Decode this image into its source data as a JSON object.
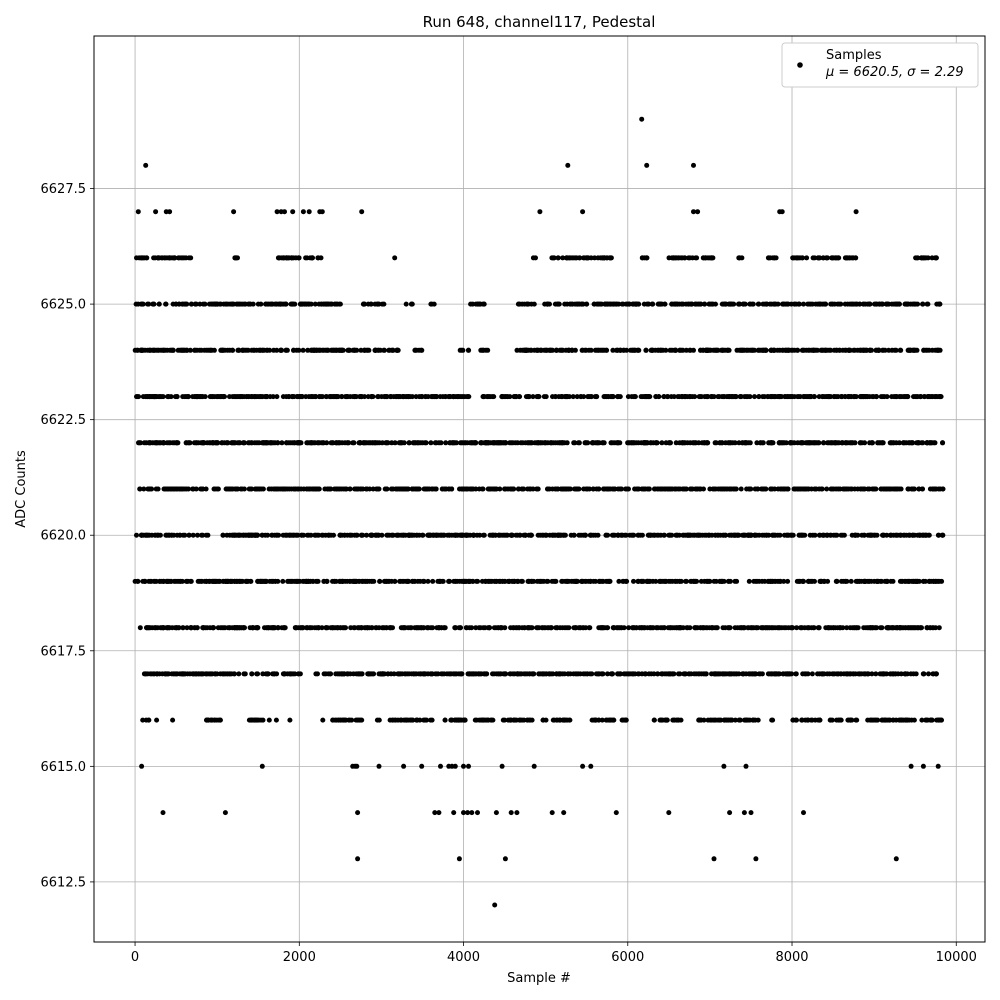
{
  "chart_data": {
    "type": "scatter",
    "title": "Run 648, channel117, Pedestal",
    "xlabel": "Sample #",
    "ylabel": "ADC Counts",
    "xlim": [
      -500,
      10350
    ],
    "ylim": [
      6611.2,
      6630.8
    ],
    "xticks": [
      0,
      2000,
      4000,
      6000,
      8000,
      10000
    ],
    "yticks": [
      6612.5,
      6615.0,
      6617.5,
      6620.0,
      6622.5,
      6625.0,
      6627.5
    ],
    "xtick_labels": [
      "0",
      "2000",
      "4000",
      "6000",
      "8000",
      "10000"
    ],
    "ytick_labels": [
      "6612.5",
      "6615.0",
      "6617.5",
      "6620.0",
      "6622.5",
      "6625.0",
      "6627.5"
    ],
    "grid": true,
    "legend_position": "top-right",
    "n_samples": 9850,
    "series": [
      {
        "name": "Samples",
        "stats_label": "μ = 6620.5, σ = 2.29",
        "mean": 6620.5,
        "sigma": 2.29,
        "color": "#000000",
        "level_coverage": [
          {
            "y": 6626,
            "ranges": [
              [
                0,
                680
              ],
              [
                1180,
                1270
              ],
              [
                1740,
                2300
              ],
              [
                3150,
                3170
              ],
              [
                4850,
                4880
              ],
              [
                5050,
                5820
              ],
              [
                6150,
                6250
              ],
              [
                6500,
                7050
              ],
              [
                7350,
                7420
              ],
              [
                7700,
                7820
              ],
              [
                8000,
                8800
              ],
              [
                9500,
                9780
              ]
            ]
          },
          {
            "y": 6625,
            "ranges": [
              [
                0,
                2520
              ],
              [
                2780,
                3060
              ],
              [
                3300,
                3380
              ],
              [
                3600,
                3650
              ],
              [
                4050,
                4270
              ],
              [
                4650,
                7100
              ],
              [
                7150,
                9820
              ]
            ]
          },
          {
            "y": 6624,
            "ranges": [
              [
                0,
                2700
              ],
              [
                2750,
                3230
              ],
              [
                3400,
                3500
              ],
              [
                3950,
                4000
              ],
              [
                4050,
                4080
              ],
              [
                4200,
                4300
              ],
              [
                4650,
                9820
              ]
            ]
          },
          {
            "y": 6623,
            "ranges": [
              [
                0,
                9820
              ]
            ]
          },
          {
            "y": 6622,
            "ranges": [
              [
                0,
                9840
              ]
            ]
          },
          {
            "y": 6621,
            "ranges": [
              [
                0,
                9840
              ]
            ]
          },
          {
            "y": 6620,
            "ranges": [
              [
                0,
                9840
              ]
            ]
          },
          {
            "y": 6619,
            "ranges": [
              [
                0,
                9840
              ]
            ]
          },
          {
            "y": 6618,
            "ranges": [
              [
                60,
                9840
              ]
            ]
          },
          {
            "y": 6617,
            "ranges": [
              [
                100,
                2030
              ],
              [
                2200,
                2230
              ],
              [
                2300,
                9840
              ]
            ]
          },
          {
            "y": 6616,
            "ranges": [
              [
                90,
                170
              ],
              [
                260,
                280
              ],
              [
                440,
                460
              ],
              [
                830,
                1120
              ],
              [
                1380,
                1640
              ],
              [
                1720,
                1740
              ],
              [
                1880,
                1900
              ],
              [
                2270,
                2290
              ],
              [
                2400,
                2800
              ],
              [
                2950,
                2980
              ],
              [
                3100,
                3620
              ],
              [
                3750,
                4450
              ],
              [
                4450,
                4850
              ],
              [
                4950,
                5300
              ],
              [
                5550,
                6000
              ],
              [
                6300,
                6700
              ],
              [
                6850,
                7600
              ],
              [
                7750,
                7780
              ],
              [
                8000,
                8350
              ],
              [
                8450,
                8600
              ],
              [
                8650,
                8800
              ],
              [
                8900,
                9840
              ]
            ]
          }
        ],
        "sparse_points": [
          [
            40,
            6627
          ],
          [
            130,
            6628
          ],
          [
            250,
            6627
          ],
          [
            380,
            6627
          ],
          [
            420,
            6627
          ],
          [
            1200,
            6627
          ],
          [
            1730,
            6627
          ],
          [
            1780,
            6627
          ],
          [
            1820,
            6627
          ],
          [
            1920,
            6627
          ],
          [
            2050,
            6627
          ],
          [
            2120,
            6627
          ],
          [
            2250,
            6627
          ],
          [
            2280,
            6627
          ],
          [
            2760,
            6627
          ],
          [
            4930,
            6627
          ],
          [
            5450,
            6627
          ],
          [
            6800,
            6627
          ],
          [
            6850,
            6627
          ],
          [
            7850,
            6627
          ],
          [
            7880,
            6627
          ],
          [
            8780,
            6627
          ],
          [
            5270,
            6628
          ],
          [
            6230,
            6628
          ],
          [
            6800,
            6628
          ],
          [
            6170,
            6629
          ],
          [
            80,
            6615
          ],
          [
            1550,
            6615
          ],
          [
            2650,
            6615
          ],
          [
            2680,
            6615
          ],
          [
            2700,
            6615
          ],
          [
            2970,
            6615
          ],
          [
            3270,
            6615
          ],
          [
            3490,
            6615
          ],
          [
            3720,
            6615
          ],
          [
            3820,
            6615
          ],
          [
            3860,
            6615
          ],
          [
            3900,
            6615
          ],
          [
            4000,
            6615
          ],
          [
            4060,
            6615
          ],
          [
            4470,
            6615
          ],
          [
            4860,
            6615
          ],
          [
            5450,
            6615
          ],
          [
            5550,
            6615
          ],
          [
            7170,
            6615
          ],
          [
            7440,
            6615
          ],
          [
            9450,
            6615
          ],
          [
            9600,
            6615
          ],
          [
            9780,
            6615
          ],
          [
            340,
            6614
          ],
          [
            1100,
            6614
          ],
          [
            2710,
            6614
          ],
          [
            3650,
            6614
          ],
          [
            3700,
            6614
          ],
          [
            3880,
            6614
          ],
          [
            4000,
            6614
          ],
          [
            4050,
            6614
          ],
          [
            4100,
            6614
          ],
          [
            4170,
            6614
          ],
          [
            4400,
            6614
          ],
          [
            4580,
            6614
          ],
          [
            4650,
            6614
          ],
          [
            5080,
            6614
          ],
          [
            5220,
            6614
          ],
          [
            5860,
            6614
          ],
          [
            6500,
            6614
          ],
          [
            7240,
            6614
          ],
          [
            7420,
            6614
          ],
          [
            7500,
            6614
          ],
          [
            8140,
            6614
          ],
          [
            2710,
            6613
          ],
          [
            3950,
            6613
          ],
          [
            4510,
            6613
          ],
          [
            7050,
            6613
          ],
          [
            7560,
            6613
          ],
          [
            9270,
            6613
          ],
          [
            4380,
            6612
          ]
        ]
      }
    ]
  }
}
